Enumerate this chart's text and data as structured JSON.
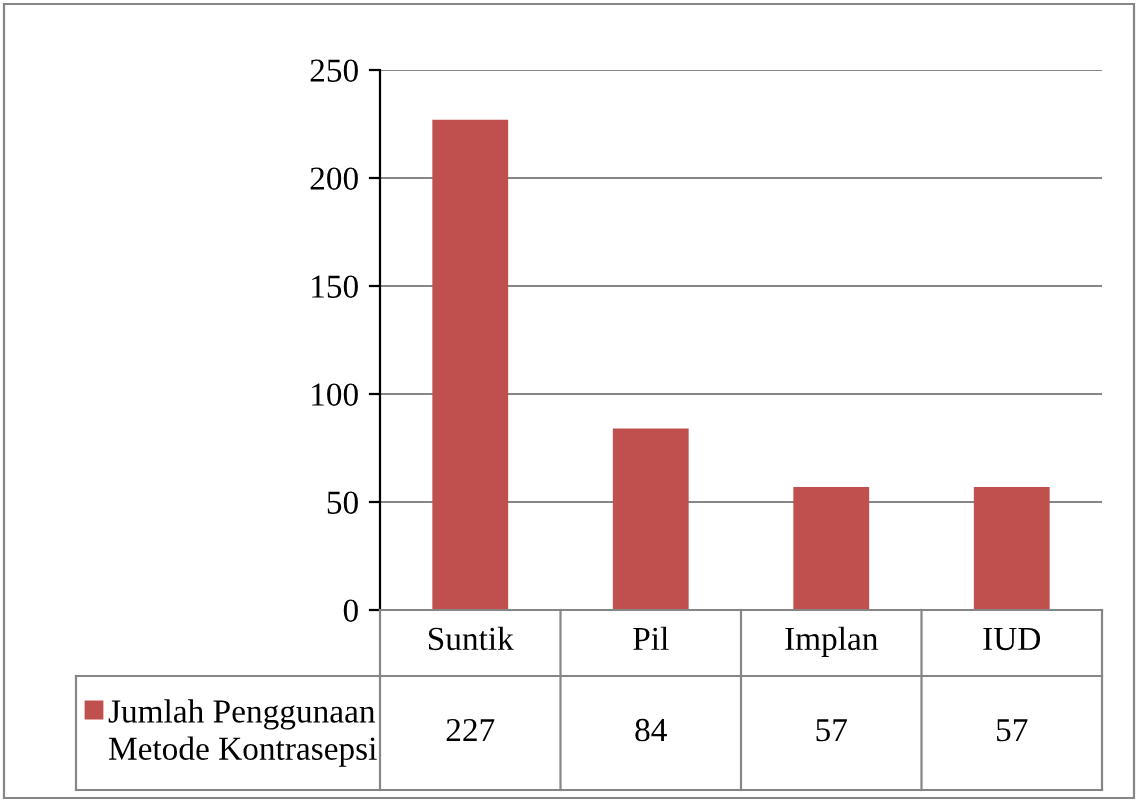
{
  "chart_data": {
    "type": "bar",
    "categories": [
      "Suntik",
      "Pil",
      "Implan",
      "IUD"
    ],
    "series": [
      {
        "name": "Jumlah Penggunaan Metode Kontrasepsi",
        "color": "#c0504d",
        "values": [
          227,
          84,
          57,
          57
        ]
      }
    ],
    "ylim": [
      0,
      250
    ],
    "yticks": [
      0,
      50,
      100,
      150,
      200,
      250
    ],
    "grid": "y",
    "data_labels": true,
    "legend": "bottom left"
  }
}
